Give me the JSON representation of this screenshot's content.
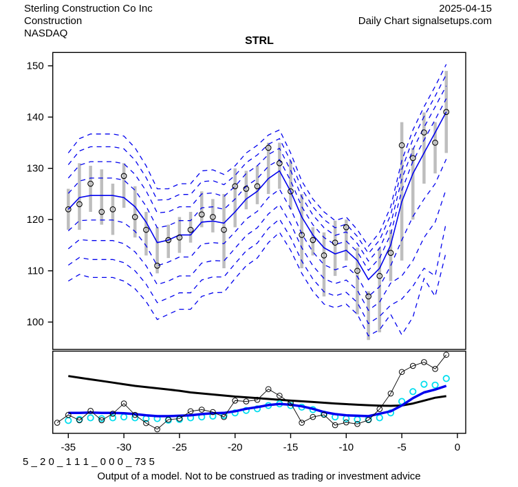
{
  "header": {
    "company": "Sterling Construction Co Inc",
    "sector": "Construction",
    "exchange": "NASDAQ",
    "date": "2025-04-15",
    "source": "Daily Chart signalsetups.com"
  },
  "title": "STRL",
  "footer": {
    "model_code": "5 _ 2 0 _ 1 1 1 _ 0 0 0 _ 73 5",
    "disclaimer": "Output of a model. Not to be construed as trading or investment advice"
  },
  "colors": {
    "line_blue": "#0000EE",
    "bar_gray": "#BEBEBE",
    "cyan": "#00DDEE",
    "black": "#000000"
  },
  "chart_data": {
    "type": "line",
    "title": "STRL",
    "xlabel": "",
    "ylabel": "",
    "grid": false,
    "xticks": [
      -35,
      -30,
      -25,
      -20,
      -15,
      -10,
      -5,
      0
    ],
    "panels": [
      {
        "name": "price",
        "ylim": [
          95,
          151.5
        ],
        "yticks": [
          100,
          110,
          120,
          130,
          140,
          150
        ],
        "x": [
          -35,
          -34,
          -33,
          -32,
          -31,
          -30,
          -29,
          -28,
          -27,
          -26,
          -25,
          -24,
          -23,
          -22,
          -21,
          -20,
          -19,
          -18,
          -17,
          -16,
          -15,
          -14,
          -13,
          -12,
          -11,
          -10,
          -9,
          -8,
          -7,
          -6,
          -5,
          -4,
          -3,
          -2,
          -1
        ],
        "close": [
          122,
          123,
          127,
          121.5,
          122,
          128.5,
          120.5,
          118,
          111,
          116,
          116.5,
          118,
          121,
          120.5,
          118,
          126.5,
          126,
          126.5,
          134,
          131,
          125.5,
          117,
          116,
          113,
          115.5,
          118.5,
          110,
          105,
          109,
          113.5,
          134.5,
          132,
          137,
          135,
          141
        ],
        "high": [
          126,
          131,
          130.5,
          129.8,
          127,
          131,
          126.5,
          121.5,
          118.5,
          119,
          120.5,
          121.5,
          125.5,
          124,
          125,
          130,
          129.5,
          130.5,
          135,
          135,
          131.5,
          125,
          118.5,
          117.5,
          119.8,
          120,
          114.5,
          106,
          114.5,
          118,
          139,
          134,
          140.9,
          139,
          149
        ],
        "low": [
          118,
          118,
          121.5,
          119,
          117,
          122.3,
          116.5,
          113,
          109.5,
          112.5,
          113.5,
          115.5,
          118.5,
          117.5,
          110.5,
          118.5,
          122,
          123,
          125,
          126,
          122,
          110.5,
          113,
          105,
          109,
          112,
          101.5,
          96.5,
          98,
          108,
          112,
          120,
          127,
          129,
          133
        ],
        "median": [
          122,
          124.3,
          124.7,
          124.7,
          124.7,
          124.3,
          122.5,
          119.5,
          115.5,
          116,
          117,
          117,
          119.5,
          119.7,
          119.3,
          121.5,
          124,
          125.5,
          128,
          129.5,
          125.5,
          120.5,
          117,
          114.5,
          113.3,
          114,
          112,
          108.3,
          110.5,
          115,
          123.5,
          129,
          133,
          137,
          141
        ],
        "bands_upper": [
          [
            125.1,
            127.5,
            128.1,
            128.1,
            128.1,
            127.7,
            125.7,
            122.6,
            118.4,
            118.8,
            119.8,
            119.8,
            122.3,
            122.5,
            122,
            124,
            126.5,
            128,
            130.4,
            131.7,
            127.6,
            122.5,
            119,
            116.5,
            115.1,
            115.8,
            113.7,
            110.1,
            112.5,
            117.1,
            125.7,
            131.4,
            135.5,
            139.5,
            143.6
          ],
          [
            128.1,
            130.6,
            131.3,
            131.3,
            131.3,
            130.9,
            128.8,
            125.6,
            121.3,
            121.5,
            122.5,
            122.5,
            125,
            125.2,
            124.5,
            126.5,
            129,
            130.5,
            132.7,
            133.9,
            129.6,
            124.4,
            120.9,
            118.4,
            116.9,
            117.6,
            115.3,
            111.9,
            114.4,
            119.1,
            127.9,
            133.7,
            138,
            142,
            146.1
          ],
          [
            130.7,
            133.4,
            134.2,
            134.2,
            134.2,
            133.8,
            131.6,
            128.2,
            123.8,
            123.9,
            124.9,
            124.9,
            127.4,
            127.6,
            126.8,
            128.6,
            131.1,
            132.6,
            134.7,
            135.8,
            131.4,
            126,
            122.5,
            120,
            118.4,
            119.1,
            116.7,
            113.4,
            116,
            120.9,
            129.8,
            135.7,
            140.1,
            144.1,
            148.3
          ],
          [
            133,
            135.8,
            136.7,
            136.7,
            136.7,
            136.3,
            134,
            130.5,
            126,
            126,
            127,
            127,
            129.5,
            129.7,
            128.8,
            130.5,
            133,
            134.5,
            136.5,
            137.5,
            133,
            127.5,
            124,
            121.5,
            119.8,
            120.5,
            118,
            114.8,
            117.5,
            122.5,
            131.5,
            137.5,
            142,
            146,
            150.3
          ]
        ],
        "bands_lower": [
          [
            117.8,
            119.8,
            119.9,
            119.9,
            119.9,
            119.4,
            117.7,
            114.9,
            111,
            111.7,
            112.7,
            112.7,
            115.2,
            115.5,
            115.3,
            117.6,
            120.1,
            121.6,
            124.3,
            125.9,
            122.1,
            117.2,
            113.7,
            111.2,
            110.2,
            110.9,
            108.9,
            105,
            106.9,
            111,
            116,
            120.6,
            124,
            127,
            131.8
          ],
          [
            114.3,
            116.1,
            115.9,
            115.9,
            115.9,
            115.3,
            113.7,
            111,
            107.3,
            108,
            109,
            109,
            111.5,
            112,
            111.9,
            114.4,
            116.9,
            118.4,
            121.1,
            122.9,
            119.2,
            114.5,
            111,
            108.5,
            107.5,
            108.2,
            106.2,
            102.3,
            103.9,
            107.6,
            109,
            112,
            116.5,
            119.5,
            126
          ],
          [
            111.1,
            112.6,
            112.2,
            112.2,
            112.2,
            111.6,
            110,
            107.4,
            103.8,
            104.7,
            105.7,
            105.7,
            108.2,
            108.8,
            108.8,
            111.4,
            113.9,
            115.4,
            118.3,
            120.1,
            116.5,
            111.9,
            108.4,
            105.9,
            105.1,
            105.8,
            103.8,
            99.7,
            101.1,
            103.3,
            104.5,
            107,
            110.5,
            109,
            119.5
          ],
          [
            108,
            109.3,
            108.7,
            108.7,
            108.7,
            108,
            106.5,
            104,
            100.5,
            101.5,
            102.5,
            102.5,
            105,
            105.7,
            105.8,
            108.5,
            111,
            112.5,
            115.5,
            117.5,
            114,
            109.5,
            106,
            103.5,
            102.8,
            103.5,
            101.5,
            97.3,
            98.5,
            101.5,
            97.5,
            101,
            108.5,
            105,
            113.8
          ]
        ]
      },
      {
        "name": "indicator",
        "ylim": [
          0,
          1
        ],
        "yticks": [],
        "x_oscillator": [
          -36,
          -35,
          -34,
          -33,
          -32,
          -31,
          -30,
          -29,
          -28,
          -27,
          -26,
          -25,
          -24,
          -23,
          -22,
          -21,
          -20,
          -19,
          -18,
          -17,
          -16,
          -15,
          -14,
          -13,
          -12,
          -11,
          -10,
          -9,
          -8,
          -7,
          -6,
          -5,
          -4,
          -3,
          -2,
          -1
        ],
        "oscillator": [
          0.13,
          0.225,
          0.16,
          0.275,
          0.16,
          0.24,
          0.365,
          0.225,
          0.125,
          0.05,
          0.168,
          0.18,
          0.27,
          0.29,
          0.26,
          0.2,
          0.4,
          0.39,
          0.41,
          0.54,
          0.46,
          0.37,
          0.13,
          0.2,
          0.227,
          0.1,
          0.134,
          0.115,
          0.162,
          0.297,
          0.487,
          0.75,
          0.824,
          0.87,
          0.787,
          0.96
        ],
        "x": [
          -35,
          -34,
          -33,
          -32,
          -31,
          -30,
          -29,
          -28,
          -27,
          -26,
          -25,
          -24,
          -23,
          -22,
          -21,
          -20,
          -19,
          -18,
          -17,
          -16,
          -15,
          -14,
          -13,
          -12,
          -11,
          -10,
          -9,
          -8,
          -7,
          -6,
          -5,
          -4,
          -3,
          -2,
          -1
        ],
        "cyan_dots": [
          0.157,
          0.17,
          0.19,
          0.18,
          0.19,
          0.2,
          0.19,
          0.18,
          0.18,
          0.16,
          0.17,
          0.19,
          0.2,
          0.21,
          0.22,
          0.25,
          0.28,
          0.3,
          0.34,
          0.36,
          0.34,
          0.32,
          0.29,
          0.235,
          0.2,
          0.18,
          0.17,
          0.17,
          0.19,
          0.25,
          0.39,
          0.51,
          0.6,
          0.59,
          0.67
        ],
        "signal_line": [
          0.25,
          0.25,
          0.255,
          0.25,
          0.25,
          0.245,
          0.235,
          0.22,
          0.21,
          0.21,
          0.215,
          0.22,
          0.235,
          0.245,
          0.25,
          0.27,
          0.3,
          0.32,
          0.345,
          0.36,
          0.35,
          0.33,
          0.3,
          0.26,
          0.235,
          0.22,
          0.215,
          0.21,
          0.24,
          0.27,
          0.34,
          0.43,
          0.5,
          0.535,
          0.58
        ],
        "trend_line": [
          0.7,
          0.68,
          0.66,
          0.64,
          0.62,
          0.6,
          0.58,
          0.565,
          0.55,
          0.535,
          0.52,
          0.5,
          0.487,
          0.475,
          0.462,
          0.45,
          0.44,
          0.43,
          0.42,
          0.41,
          0.4,
          0.392,
          0.383,
          0.374,
          0.365,
          0.357,
          0.35,
          0.344,
          0.339,
          0.336,
          0.34,
          0.365,
          0.4,
          0.435,
          0.455
        ]
      }
    ]
  }
}
